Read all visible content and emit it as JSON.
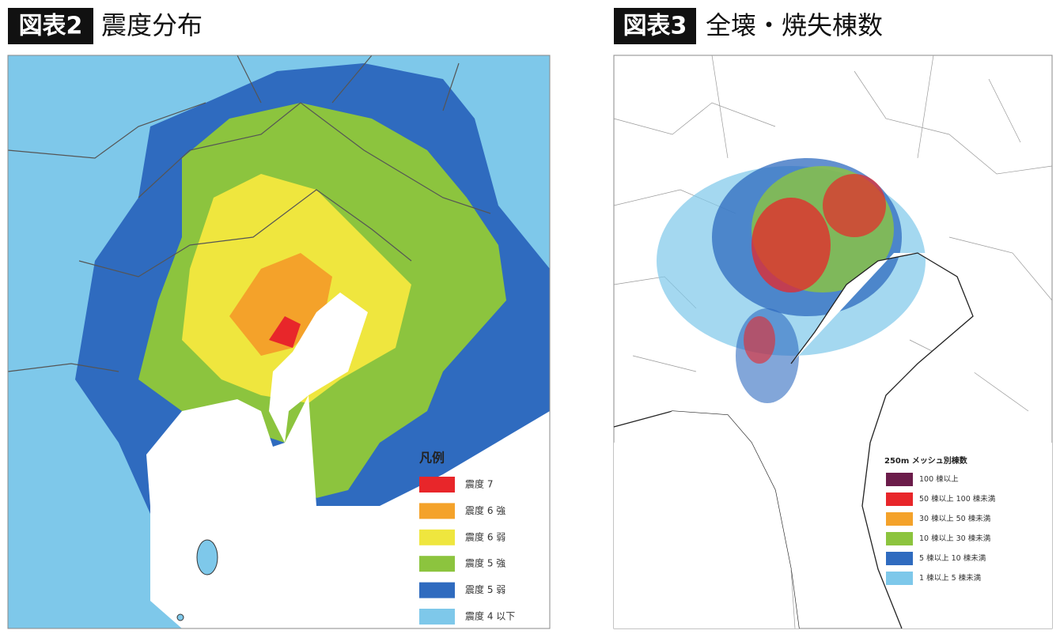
{
  "figures": [
    {
      "number": "図表2",
      "title": "震度分布",
      "legend": {
        "title": "凡例",
        "items": [
          {
            "label": "震度 7",
            "color": "#e8262a"
          },
          {
            "label": "震度 6 強",
            "color": "#f4a22a"
          },
          {
            "label": "震度 6 弱",
            "color": "#efe63e"
          },
          {
            "label": "震度 5 強",
            "color": "#8cc43e"
          },
          {
            "label": "震度 5 弱",
            "color": "#2f6bbf"
          },
          {
            "label": "震度 4 以下",
            "color": "#7ec8ea"
          }
        ]
      }
    },
    {
      "number": "図表3",
      "title": "全壊・焼失棟数",
      "legend": {
        "title": "250m メッシュ別棟数",
        "items": [
          {
            "label": "100 棟以上",
            "color": "#6b1c4a"
          },
          {
            "label": "50 棟以上 100 棟未満",
            "color": "#e8262a"
          },
          {
            "label": "30 棟以上 50 棟未満",
            "color": "#f4a22a"
          },
          {
            "label": "10 棟以上 30 棟未満",
            "color": "#8cc43e"
          },
          {
            "label": "5 棟以上 10 棟未満",
            "color": "#2f6bbf"
          },
          {
            "label": "1 棟以上 5 棟未満",
            "color": "#7ec8ea"
          }
        ]
      }
    }
  ]
}
